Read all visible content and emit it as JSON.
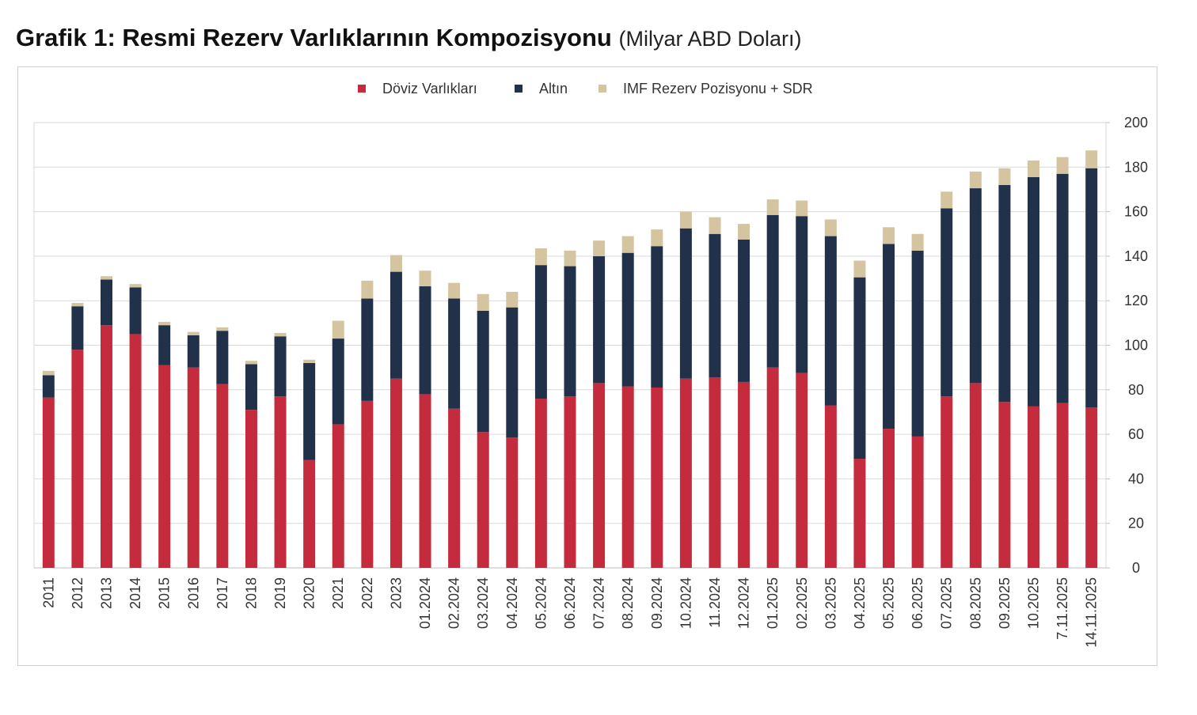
{
  "title": {
    "main": "Grafik 1: Resmi Rezerv Varlıklarının Kompozisyonu",
    "unit": "(Milyar ABD Doları)"
  },
  "colors": {
    "fx": "#c42b3c",
    "gold": "#22314a",
    "imf": "#d4c4a0",
    "grid": "#d9d9d9",
    "axis_text": "#333333"
  },
  "chart_data": {
    "type": "bar",
    "stacked": true,
    "title": "Grafik 1: Resmi Rezerv Varlıklarının Kompozisyonu",
    "ylabel": "",
    "xlabel": "",
    "ylim": [
      0,
      200
    ],
    "yticks": [
      0,
      20,
      40,
      60,
      80,
      100,
      120,
      140,
      160,
      180,
      200
    ],
    "y_axis_side": "right",
    "grid": true,
    "legend_position": "top-center",
    "categories": [
      "2011",
      "2012",
      "2013",
      "2014",
      "2015",
      "2016",
      "2017",
      "2018",
      "2019",
      "2020",
      "2021",
      "2022",
      "2023",
      "01.2024",
      "02.2024",
      "03.2024",
      "04.2024",
      "05.2024",
      "06.2024",
      "07.2024",
      "08.2024",
      "09.2024",
      "10.2024",
      "11.2024",
      "12.2024",
      "01.2025",
      "02.2025",
      "03.2025",
      "04.2025",
      "05.2025",
      "06.2025",
      "07.2025",
      "08.2025",
      "09.2025",
      "10.2025",
      "7.11.2025",
      "14.11.2025"
    ],
    "series": [
      {
        "name": "Döviz Varlıkları",
        "color": "#c42b3c",
        "values": [
          76.5,
          98,
          109,
          105,
          91,
          90,
          82.5,
          71,
          77,
          48.5,
          64.5,
          75,
          85,
          78,
          71.5,
          61,
          58.5,
          76,
          77,
          83,
          81.5,
          81,
          85,
          85.5,
          83.5,
          90,
          87.5,
          73,
          49,
          62.5,
          59,
          77,
          83,
          74.5,
          72.5,
          74,
          72
        ]
      },
      {
        "name": "Altın",
        "color": "#22314a",
        "values": [
          10,
          19.5,
          20.5,
          21,
          18,
          14.5,
          24,
          20.5,
          27,
          43.5,
          38.5,
          46,
          48,
          48.5,
          49.5,
          54.5,
          58.5,
          60,
          58.5,
          57,
          60,
          63.5,
          67.5,
          64.5,
          64,
          68.5,
          70.5,
          76,
          81.5,
          83,
          83.5,
          84.5,
          87.5,
          97.5,
          103,
          103,
          107.5
        ]
      },
      {
        "name": "IMF Rezerv Pozisyonu + SDR",
        "color": "#d4c4a0",
        "values": [
          2,
          1.5,
          1.5,
          1.5,
          1.5,
          1.5,
          1.5,
          1.5,
          1.5,
          1.5,
          8,
          8,
          7.5,
          7,
          7,
          7.5,
          7,
          7.5,
          7,
          7,
          7.5,
          7.5,
          7.5,
          7.5,
          7,
          7,
          7,
          7.5,
          7.5,
          7.5,
          7.5,
          7.5,
          7.5,
          7.5,
          7.5,
          7.5,
          8
        ]
      }
    ]
  }
}
